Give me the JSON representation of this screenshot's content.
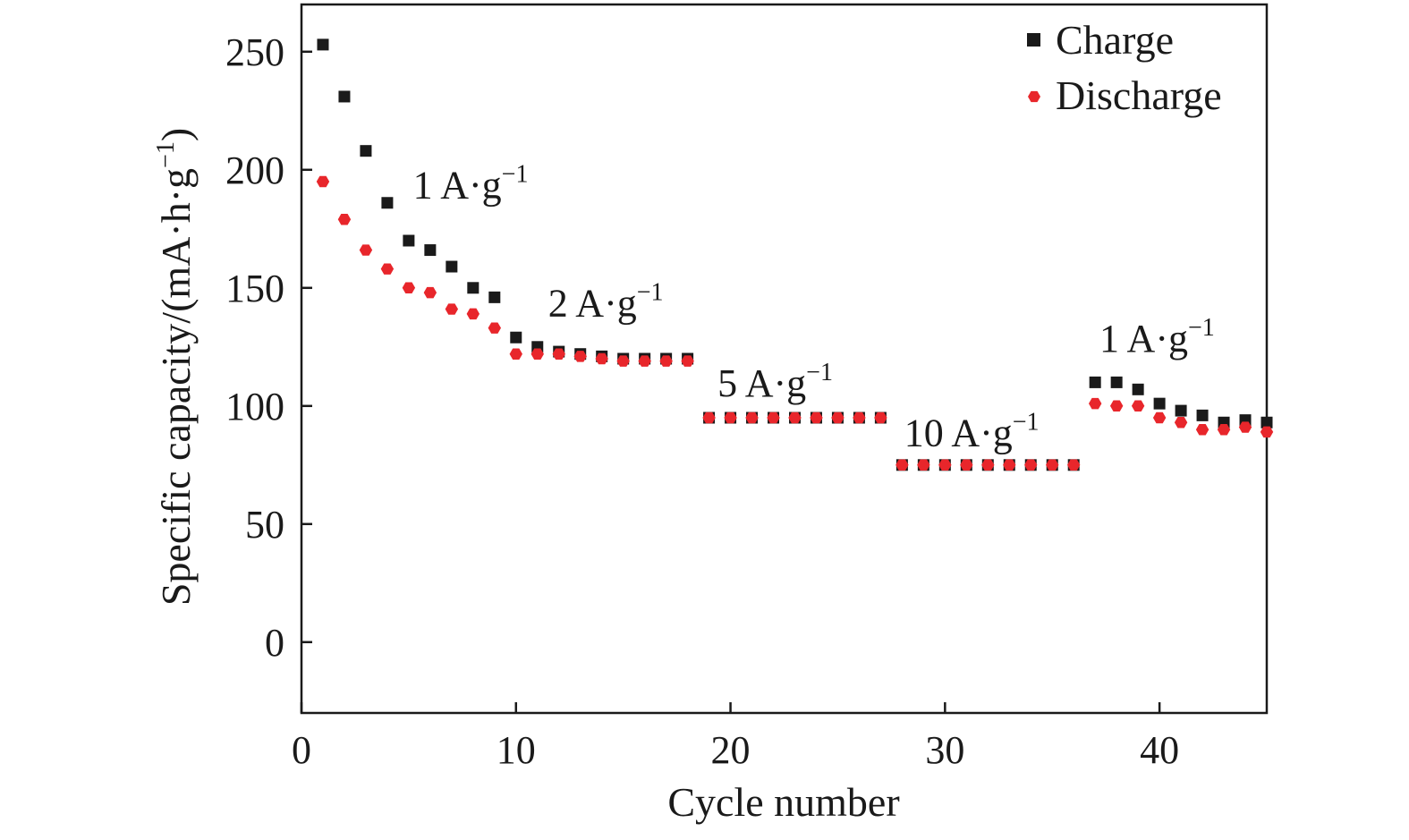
{
  "chart_data": {
    "type": "scatter",
    "xlabel": "Cycle number",
    "ylabel": "Specific capacity/(mA·h·g",
    "ylabel_sup": "−1",
    "ylabel_close": ")",
    "xlim": [
      0,
      45
    ],
    "ylim": [
      -30,
      270
    ],
    "x_ticks": [
      0,
      10,
      20,
      30,
      40
    ],
    "y_ticks": [
      0,
      50,
      100,
      150,
      200,
      250
    ],
    "grid": false,
    "legend_position": "top-right",
    "series": [
      {
        "name": "Charge",
        "marker": "square",
        "color": "#1a1a1a",
        "x": [
          1,
          2,
          3,
          4,
          5,
          6,
          7,
          8,
          9,
          10,
          11,
          12,
          13,
          14,
          15,
          16,
          17,
          18,
          19,
          20,
          21,
          22,
          23,
          24,
          25,
          26,
          27,
          28,
          29,
          30,
          31,
          32,
          33,
          34,
          35,
          36,
          37,
          38,
          39,
          40,
          41,
          42,
          43,
          44,
          45
        ],
        "y": [
          253,
          231,
          208,
          186,
          170,
          166,
          159,
          150,
          146,
          129,
          125,
          123,
          122,
          121,
          120,
          120,
          120,
          120,
          95,
          95,
          95,
          95,
          95,
          95,
          95,
          95,
          95,
          75,
          75,
          75,
          75,
          75,
          75,
          75,
          75,
          75,
          110,
          110,
          107,
          101,
          98,
          96,
          93,
          94,
          93
        ]
      },
      {
        "name": "Discharge",
        "marker": "hexagon",
        "color": "#e8262b",
        "x": [
          1,
          2,
          3,
          4,
          5,
          6,
          7,
          8,
          9,
          10,
          11,
          12,
          13,
          14,
          15,
          16,
          17,
          18,
          19,
          20,
          21,
          22,
          23,
          24,
          25,
          26,
          27,
          28,
          29,
          30,
          31,
          32,
          33,
          34,
          35,
          36,
          37,
          38,
          39,
          40,
          41,
          42,
          43,
          44,
          45
        ],
        "y": [
          195,
          179,
          166,
          158,
          150,
          148,
          141,
          139,
          133,
          122,
          122,
          122,
          121,
          120,
          119,
          119,
          119,
          119,
          95,
          95,
          95,
          95,
          95,
          95,
          95,
          95,
          95,
          75,
          75,
          75,
          75,
          75,
          75,
          75,
          75,
          75,
          101,
          100,
          100,
          95,
          93,
          90,
          90,
          91,
          89
        ]
      }
    ],
    "annotations": [
      {
        "text": "1 A·g",
        "sup": "−1",
        "x": 5.2,
        "y": 188
      },
      {
        "text": "2 A·g",
        "sup": "−1",
        "x": 11.5,
        "y": 138
      },
      {
        "text": "5 A·g",
        "sup": "−1",
        "x": 19.4,
        "y": 104
      },
      {
        "text": "10 A·g",
        "sup": "−1",
        "x": 28.1,
        "y": 83
      },
      {
        "text": "1 A·g",
        "sup": "−1",
        "x": 37.2,
        "y": 123
      }
    ]
  }
}
